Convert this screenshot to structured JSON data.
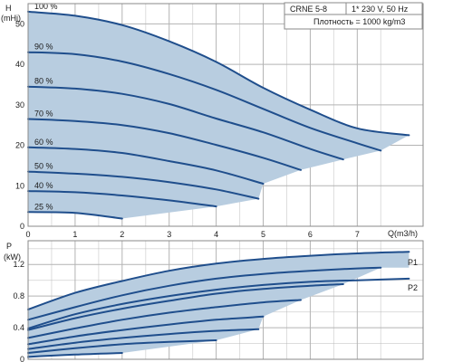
{
  "info_box": {
    "model": "CRNE 5-8",
    "supply": "1* 230 V, 50 Hz",
    "density": "Плотность = 1000 kg/m3"
  },
  "colors": {
    "envelope_fill": "#b8cde0",
    "curve": "#1f4e8c",
    "grid": "#b3b3b3"
  },
  "chart_data": [
    {
      "type": "line",
      "ylabel_top": "H",
      "ylabel_unit": "(mHi)",
      "xlabel": "Q(m3/h)",
      "xlim": [
        0,
        8.4
      ],
      "ylim": [
        0,
        55
      ],
      "x_ticks": [
        "0",
        "1",
        "2",
        "3",
        "4",
        "5",
        "6",
        "7"
      ],
      "y_ticks": [
        "0",
        "10",
        "20",
        "30",
        "40",
        "50"
      ],
      "grid": true,
      "envelope": "shaded",
      "series": [
        {
          "name": "100 %",
          "points": [
            [
              0,
              53.0
            ],
            [
              1,
              52.0
            ],
            [
              2,
              49.7
            ],
            [
              3,
              45.7
            ],
            [
              4,
              40.6
            ],
            [
              5,
              34.2
            ],
            [
              6,
              28.8
            ],
            [
              7,
              24.2
            ],
            [
              8.1,
              22.5
            ]
          ]
        },
        {
          "name": "90 %",
          "points": [
            [
              0,
              43.0
            ],
            [
              1,
              42.5
            ],
            [
              2,
              40.7
            ],
            [
              3,
              37.6
            ],
            [
              4,
              33.7
            ],
            [
              5,
              29.0
            ],
            [
              6,
              24.3
            ],
            [
              7,
              20.5
            ],
            [
              7.5,
              18.7
            ]
          ]
        },
        {
          "name": "80 %",
          "points": [
            [
              0,
              34.5
            ],
            [
              1,
              34.0
            ],
            [
              2,
              32.7
            ],
            [
              3,
              30.2
            ],
            [
              4,
              26.6
            ],
            [
              5,
              23.2
            ],
            [
              6,
              19.1
            ],
            [
              6.7,
              16.5
            ]
          ]
        },
        {
          "name": "70 %",
          "points": [
            [
              0,
              26.5
            ],
            [
              1,
              26.0
            ],
            [
              2,
              25.0
            ],
            [
              3,
              23.0
            ],
            [
              4,
              20.1
            ],
            [
              5,
              16.9
            ],
            [
              5.8,
              13.9
            ]
          ]
        },
        {
          "name": "60 %",
          "points": [
            [
              0,
              19.5
            ],
            [
              1,
              19.1
            ],
            [
              2,
              18.1
            ],
            [
              3,
              16.1
            ],
            [
              4,
              13.8
            ],
            [
              5,
              10.5
            ]
          ]
        },
        {
          "name": "50 %",
          "points": [
            [
              0,
              13.5
            ],
            [
              1,
              13.0
            ],
            [
              2,
              12.2
            ],
            [
              3,
              10.9
            ],
            [
              4,
              9.1
            ],
            [
              4.9,
              6.8
            ]
          ]
        },
        {
          "name": "40 %",
          "points": [
            [
              0,
              8.7
            ],
            [
              1,
              8.4
            ],
            [
              2,
              7.6
            ],
            [
              3,
              6.4
            ],
            [
              4,
              4.9
            ]
          ]
        },
        {
          "name": "25 %",
          "points": [
            [
              0,
              3.5
            ],
            [
              1,
              3.3
            ],
            [
              2,
              1.9
            ]
          ]
        }
      ]
    },
    {
      "type": "line",
      "ylabel_top": "P",
      "ylabel_unit": "(kW)",
      "xlim": [
        0,
        8.4
      ],
      "ylim": [
        0,
        1.5
      ],
      "y_ticks": [
        "0",
        "0.4",
        "0.8",
        "1.2"
      ],
      "grid": true,
      "envelope": "shaded",
      "end_labels": [
        "P1",
        "P2"
      ],
      "series": [
        {
          "name": "P1",
          "points": [
            [
              0,
              0.63
            ],
            [
              1,
              0.84
            ],
            [
              2,
              0.99
            ],
            [
              3,
              1.12
            ],
            [
              4,
              1.21
            ],
            [
              5,
              1.27
            ],
            [
              6,
              1.31
            ],
            [
              7,
              1.34
            ],
            [
              8.1,
              1.36
            ]
          ]
        },
        {
          "name": "P2",
          "points": [
            [
              0,
              0.39
            ],
            [
              1,
              0.57
            ],
            [
              2,
              0.7
            ],
            [
              3,
              0.8
            ],
            [
              4,
              0.88
            ],
            [
              5,
              0.94
            ],
            [
              6,
              0.98
            ],
            [
              7,
              1.0
            ],
            [
              8.1,
              1.02
            ]
          ]
        },
        {
          "name": "",
          "points": [
            [
              0,
              0.5
            ],
            [
              1,
              0.66
            ],
            [
              2,
              0.81
            ],
            [
              3,
              0.93
            ],
            [
              4,
              1.02
            ],
            [
              5,
              1.08
            ],
            [
              6,
              1.12
            ],
            [
              7,
              1.15
            ],
            [
              7.5,
              1.16
            ]
          ]
        },
        {
          "name": "",
          "points": [
            [
              0,
              0.37
            ],
            [
              1,
              0.52
            ],
            [
              2,
              0.64
            ],
            [
              3,
              0.74
            ],
            [
              4,
              0.83
            ],
            [
              5,
              0.89
            ],
            [
              6,
              0.93
            ],
            [
              6.7,
              0.95
            ]
          ]
        },
        {
          "name": "",
          "points": [
            [
              0,
              0.27
            ],
            [
              1,
              0.39
            ],
            [
              2,
              0.5
            ],
            [
              3,
              0.59
            ],
            [
              4,
              0.66
            ],
            [
              5,
              0.72
            ],
            [
              5.8,
              0.75
            ]
          ]
        },
        {
          "name": "",
          "points": [
            [
              0,
              0.19
            ],
            [
              1,
              0.29
            ],
            [
              2,
              0.37
            ],
            [
              3,
              0.44
            ],
            [
              4,
              0.5
            ],
            [
              5,
              0.54
            ]
          ]
        },
        {
          "name": "",
          "points": [
            [
              0,
              0.13
            ],
            [
              1,
              0.21
            ],
            [
              2,
              0.27
            ],
            [
              3,
              0.32
            ],
            [
              4,
              0.36
            ],
            [
              4.9,
              0.38
            ]
          ]
        },
        {
          "name": "",
          "points": [
            [
              0,
              0.08
            ],
            [
              1,
              0.14
            ],
            [
              2,
              0.19
            ],
            [
              3,
              0.22
            ],
            [
              4,
              0.24
            ]
          ]
        },
        {
          "name": "",
          "points": [
            [
              0,
              0.03
            ],
            [
              1,
              0.06
            ],
            [
              2,
              0.08
            ]
          ]
        }
      ]
    }
  ]
}
